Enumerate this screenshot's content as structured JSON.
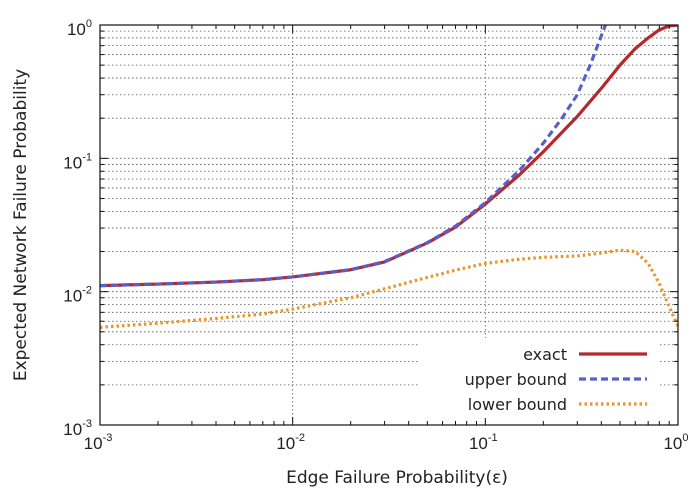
{
  "chart_data": {
    "type": "line",
    "title": "",
    "xlabel": "Edge Failure Probability(ε)",
    "ylabel": "Expected Network Failure Probability",
    "x_scale": "log",
    "y_scale": "log",
    "xlim": [
      0.001,
      1
    ],
    "ylim": [
      0.001,
      1
    ],
    "grid": true,
    "legend_position": "bottom-right",
    "x_ticks": [
      {
        "base": "10",
        "exp": "-3",
        "value": 0.001
      },
      {
        "base": "10",
        "exp": "-2",
        "value": 0.01
      },
      {
        "base": "10",
        "exp": "-1",
        "value": 0.1
      },
      {
        "base": "10",
        "exp": "0",
        "value": 1
      }
    ],
    "y_ticks": [
      {
        "base": "10",
        "exp": "-3",
        "value": 0.001
      },
      {
        "base": "10",
        "exp": "-2",
        "value": 0.01
      },
      {
        "base": "10",
        "exp": "-1",
        "value": 0.1
      },
      {
        "base": "10",
        "exp": "0",
        "value": 1
      }
    ],
    "series": [
      {
        "name": "exact",
        "color": "#b5282e",
        "style": "solid",
        "points": [
          [
            0.001,
            0.0111
          ],
          [
            0.002,
            0.0114
          ],
          [
            0.004,
            0.0118
          ],
          [
            0.007,
            0.0123
          ],
          [
            0.01,
            0.0129
          ],
          [
            0.02,
            0.0146
          ],
          [
            0.03,
            0.0167
          ],
          [
            0.05,
            0.0232
          ],
          [
            0.07,
            0.0305
          ],
          [
            0.1,
            0.0454
          ],
          [
            0.15,
            0.075
          ],
          [
            0.2,
            0.112
          ],
          [
            0.3,
            0.206
          ],
          [
            0.4,
            0.335
          ],
          [
            0.5,
            0.5
          ],
          [
            0.6,
            0.665
          ],
          [
            0.7,
            0.8
          ],
          [
            0.8,
            0.92
          ],
          [
            0.9,
            0.985
          ],
          [
            1.0,
            1.0
          ]
        ]
      },
      {
        "name": "upper bound",
        "color": "#5a5fc8",
        "style": "dashed",
        "points": [
          [
            0.001,
            0.0111
          ],
          [
            0.002,
            0.0114
          ],
          [
            0.004,
            0.0118
          ],
          [
            0.007,
            0.0123
          ],
          [
            0.01,
            0.0129
          ],
          [
            0.02,
            0.0146
          ],
          [
            0.03,
            0.0168
          ],
          [
            0.05,
            0.0233
          ],
          [
            0.07,
            0.031
          ],
          [
            0.1,
            0.0465
          ],
          [
            0.15,
            0.081
          ],
          [
            0.2,
            0.13
          ],
          [
            0.25,
            0.2
          ],
          [
            0.3,
            0.3
          ],
          [
            0.35,
            0.5
          ],
          [
            0.42,
            1.0
          ]
        ]
      },
      {
        "name": "lower bound",
        "color": "#e8952a",
        "style": "dotted",
        "points": [
          [
            0.001,
            0.0054
          ],
          [
            0.002,
            0.0058
          ],
          [
            0.004,
            0.0063
          ],
          [
            0.007,
            0.0068
          ],
          [
            0.01,
            0.0074
          ],
          [
            0.02,
            0.009
          ],
          [
            0.03,
            0.0105
          ],
          [
            0.05,
            0.0128
          ],
          [
            0.07,
            0.0145
          ],
          [
            0.1,
            0.0163
          ],
          [
            0.15,
            0.0175
          ],
          [
            0.2,
            0.0181
          ],
          [
            0.3,
            0.0185
          ],
          [
            0.4,
            0.0195
          ],
          [
            0.5,
            0.0205
          ],
          [
            0.6,
            0.02
          ],
          [
            0.7,
            0.0163
          ],
          [
            0.8,
            0.0115
          ],
          [
            0.9,
            0.0077
          ],
          [
            1.0,
            0.0055
          ]
        ]
      }
    ]
  }
}
